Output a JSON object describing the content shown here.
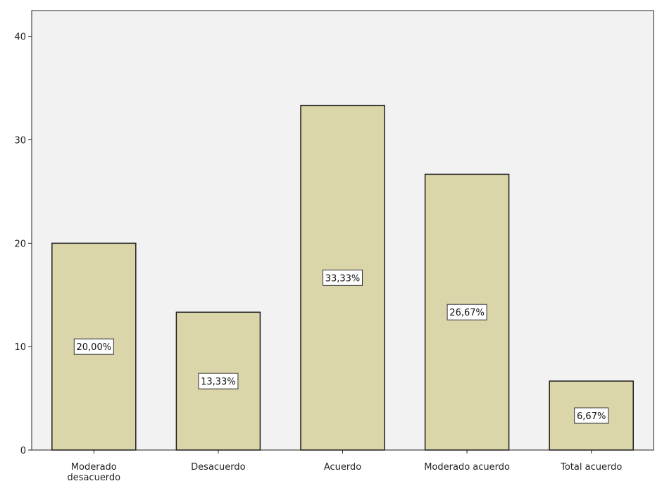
{
  "chart_data": {
    "type": "bar",
    "categories": [
      [
        "Moderado",
        "desacuerdo"
      ],
      [
        "Desacuerdo"
      ],
      [
        "Acuerdo"
      ],
      [
        "Moderado acuerdo"
      ],
      [
        "Total acuerdo"
      ]
    ],
    "values": [
      20.0,
      13.33,
      33.33,
      26.67,
      6.67
    ],
    "data_labels": [
      "20,00%",
      "13,33%",
      "33,33%",
      "26,67%",
      "6,67%"
    ],
    "yticks": [
      0,
      10,
      20,
      30,
      40
    ],
    "ylim": [
      0,
      42.5
    ],
    "title": "",
    "xlabel": "",
    "ylabel": "",
    "grid": false,
    "colors": {
      "plot_background": "#f2f2f2",
      "bar_fill": "#dbd5aa",
      "bar_stroke": "#1f1f1f",
      "axis": "#222222",
      "label_box_fill": "#ffffff",
      "label_box_stroke": "#333333"
    }
  }
}
